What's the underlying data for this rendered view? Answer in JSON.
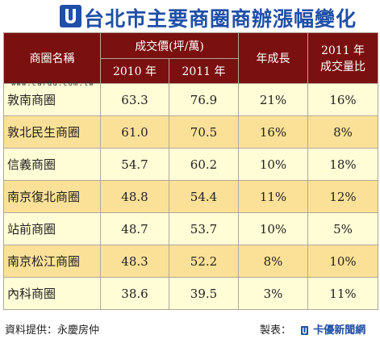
{
  "title": "台北市主要商圈商辦漲幅變化",
  "watermark": "www.cardu.com.tw",
  "header": {
    "district": "商圈名稱",
    "price_group": "成交價(坪/萬)",
    "year_2010": "2010 年",
    "year_2011": "2011 年",
    "growth": "年成長",
    "share_line1": "2011 年",
    "share_line2": "成交量比"
  },
  "rows": [
    {
      "name": "敦南商圈",
      "p2010": "63.3",
      "p2011": "76.9",
      "growth": "21%",
      "share": "16%"
    },
    {
      "name": "敦北民生商圈",
      "p2010": "61.0",
      "p2011": "70.5",
      "growth": "16%",
      "share": "8%"
    },
    {
      "name": "信義商圈",
      "p2010": "54.7",
      "p2011": "60.2",
      "growth": "10%",
      "share": "18%"
    },
    {
      "name": "南京復北商圈",
      "p2010": "48.8",
      "p2011": "54.4",
      "growth": "11%",
      "share": "12%"
    },
    {
      "name": "站前商圈",
      "p2010": "48.7",
      "p2011": "53.7",
      "growth": "10%",
      "share": "5%"
    },
    {
      "name": "南京松江商圈",
      "p2010": "48.3",
      "p2011": "52.2",
      "growth": "8%",
      "share": "10%"
    },
    {
      "name": "內科商圈",
      "p2010": "38.6",
      "p2011": "39.5",
      "growth": "3%",
      "share": "11%"
    }
  ],
  "footer": {
    "source": "資料提供：永慶房仲",
    "made_by_label": "製表：",
    "brand": "卡優新聞網"
  },
  "colors": {
    "header_bg": "#7b1010",
    "row_light": "#fffdd6",
    "row_dark": "#fbe197",
    "title_blue": "#1f4fa8"
  }
}
